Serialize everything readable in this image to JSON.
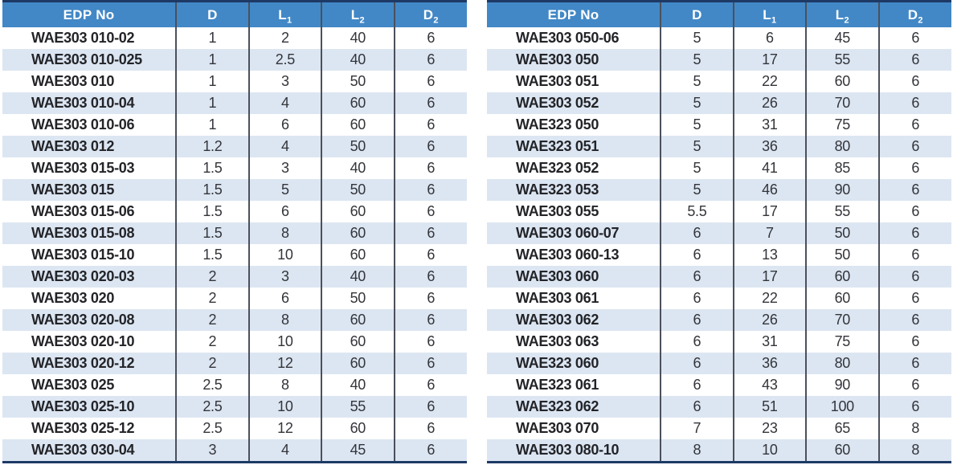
{
  "colors": {
    "header_bg": "#4288c6",
    "header_text": "#ffffff",
    "row_stripe": "#dce6f2",
    "row_plain": "#ffffff",
    "outer_border": "#1d3a66",
    "column_divider": "#4b505b",
    "body_text": "#33353a"
  },
  "headers": [
    {
      "text": "EDP No",
      "sub": ""
    },
    {
      "text": "D",
      "sub": ""
    },
    {
      "text": "L",
      "sub": "1"
    },
    {
      "text": "L",
      "sub": "2"
    },
    {
      "text": "D",
      "sub": "2"
    }
  ],
  "tables": [
    {
      "name": "left-spec-table",
      "rows": [
        [
          "WAE303 010-02",
          "1",
          "2",
          "40",
          "6"
        ],
        [
          "WAE303 010-025",
          "1",
          "2.5",
          "40",
          "6"
        ],
        [
          "WAE303 010",
          "1",
          "3",
          "50",
          "6"
        ],
        [
          "WAE303 010-04",
          "1",
          "4",
          "60",
          "6"
        ],
        [
          "WAE303 010-06",
          "1",
          "6",
          "60",
          "6"
        ],
        [
          "WAE303 012",
          "1.2",
          "4",
          "50",
          "6"
        ],
        [
          "WAE303 015-03",
          "1.5",
          "3",
          "40",
          "6"
        ],
        [
          "WAE303 015",
          "1.5",
          "5",
          "50",
          "6"
        ],
        [
          "WAE303 015-06",
          "1.5",
          "6",
          "60",
          "6"
        ],
        [
          "WAE303 015-08",
          "1.5",
          "8",
          "60",
          "6"
        ],
        [
          "WAE303 015-10",
          "1.5",
          "10",
          "60",
          "6"
        ],
        [
          "WAE303 020-03",
          "2",
          "3",
          "40",
          "6"
        ],
        [
          "WAE303 020",
          "2",
          "6",
          "50",
          "6"
        ],
        [
          "WAE303 020-08",
          "2",
          "8",
          "60",
          "6"
        ],
        [
          "WAE303 020-10",
          "2",
          "10",
          "60",
          "6"
        ],
        [
          "WAE303 020-12",
          "2",
          "12",
          "60",
          "6"
        ],
        [
          "WAE303 025",
          "2.5",
          "8",
          "40",
          "6"
        ],
        [
          "WAE303 025-10",
          "2.5",
          "10",
          "55",
          "6"
        ],
        [
          "WAE303 025-12",
          "2.5",
          "12",
          "60",
          "6"
        ],
        [
          "WAE303 030-04",
          "3",
          "4",
          "45",
          "6"
        ]
      ]
    },
    {
      "name": "right-spec-table",
      "rows": [
        [
          "WAE303 050-06",
          "5",
          "6",
          "45",
          "6"
        ],
        [
          "WAE303 050",
          "5",
          "17",
          "55",
          "6"
        ],
        [
          "WAE303 051",
          "5",
          "22",
          "60",
          "6"
        ],
        [
          "WAE303 052",
          "5",
          "26",
          "70",
          "6"
        ],
        [
          "WAE323 050",
          "5",
          "31",
          "75",
          "6"
        ],
        [
          "WAE323 051",
          "5",
          "36",
          "80",
          "6"
        ],
        [
          "WAE323 052",
          "5",
          "41",
          "85",
          "6"
        ],
        [
          "WAE323 053",
          "5",
          "46",
          "90",
          "6"
        ],
        [
          "WAE303 055",
          "5.5",
          "17",
          "55",
          "6"
        ],
        [
          "WAE303 060-07",
          "6",
          "7",
          "50",
          "6"
        ],
        [
          "WAE303 060-13",
          "6",
          "13",
          "50",
          "6"
        ],
        [
          "WAE303 060",
          "6",
          "17",
          "60",
          "6"
        ],
        [
          "WAE303 061",
          "6",
          "22",
          "60",
          "6"
        ],
        [
          "WAE303 062",
          "6",
          "26",
          "70",
          "6"
        ],
        [
          "WAE303 063",
          "6",
          "31",
          "75",
          "6"
        ],
        [
          "WAE323 060",
          "6",
          "36",
          "80",
          "6"
        ],
        [
          "WAE323 061",
          "6",
          "43",
          "90",
          "6"
        ],
        [
          "WAE323 062",
          "6",
          "51",
          "100",
          "6"
        ],
        [
          "WAE303 070",
          "7",
          "23",
          "65",
          "8"
        ],
        [
          "WAE303 080-10",
          "8",
          "10",
          "60",
          "8"
        ]
      ]
    }
  ]
}
